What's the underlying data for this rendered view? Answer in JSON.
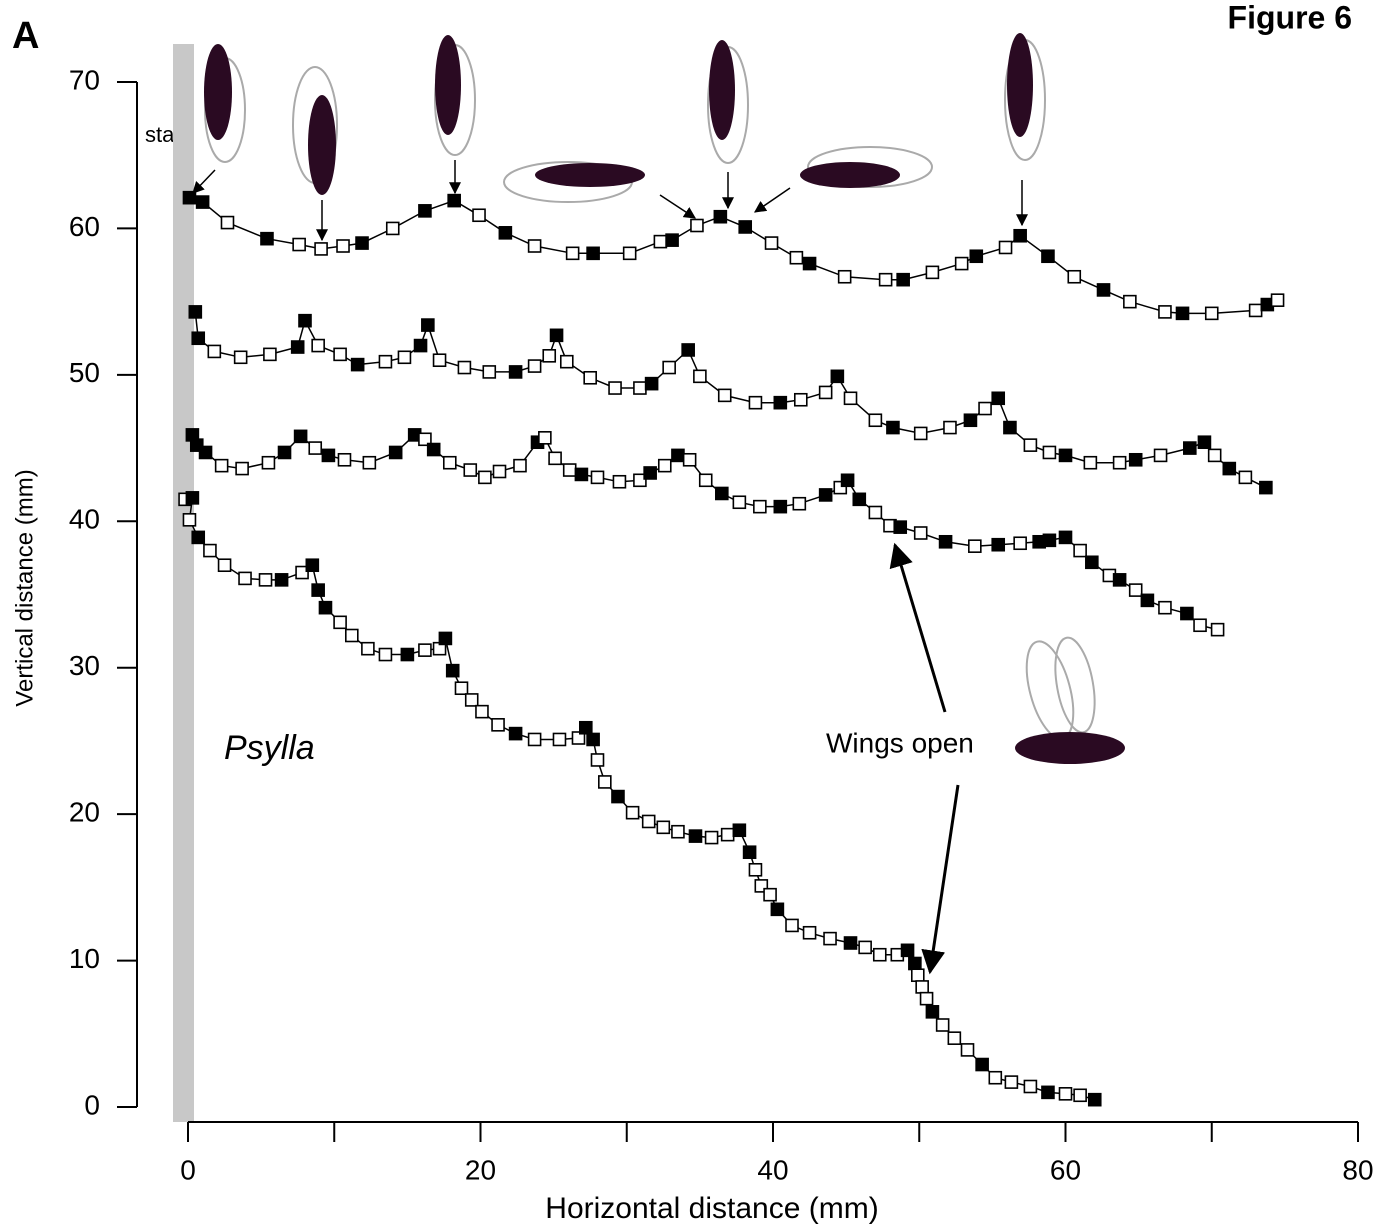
{
  "chart_data": {
    "type": "line",
    "panel_label": "A",
    "figure_label": "Figure 6",
    "xlabel": "Horizontal distance (mm)",
    "ylabel": "Vertical distance (mm)",
    "start_label": "start",
    "species_label": "Psylla",
    "annotation": "Wings open",
    "xlim": [
      0,
      80
    ],
    "ylim": [
      0,
      70
    ],
    "xticks": [
      0,
      20,
      40,
      60,
      80
    ],
    "xminor_ticks": [
      10,
      30,
      50,
      70
    ],
    "yticks": [
      0,
      10,
      20,
      30,
      40,
      50,
      60,
      70
    ],
    "line_color": "#000000",
    "marker_fill": "#ffffff",
    "filled_color": "#000000",
    "start_bar_color": "#c8c8c8",
    "series": [
      {
        "x": [
          0.1,
          1.0,
          2.7,
          5.4,
          7.6,
          9.1,
          10.6,
          11.9,
          14.0,
          16.2,
          18.2,
          19.9,
          21.7,
          23.7,
          26.3,
          27.7,
          30.2,
          32.3,
          33.1,
          34.8,
          36.4,
          38.1,
          39.9,
          41.6,
          42.5,
          44.9,
          47.7,
          48.9,
          50.9,
          52.9,
          53.9,
          55.9,
          56.9,
          58.8,
          60.6,
          62.6,
          64.4,
          66.8,
          68.0,
          70.0,
          73.0,
          73.8,
          74.5
        ],
        "values": [
          62.1,
          61.8,
          60.4,
          59.3,
          58.9,
          58.6,
          58.8,
          59.0,
          60.0,
          61.2,
          61.9,
          60.9,
          59.7,
          58.8,
          58.3,
          58.3,
          58.3,
          59.1,
          59.2,
          60.2,
          60.8,
          60.1,
          59.0,
          58.0,
          57.6,
          56.7,
          56.5,
          56.5,
          57.0,
          57.6,
          58.1,
          58.7,
          59.5,
          58.1,
          56.7,
          55.8,
          55.0,
          54.3,
          54.2,
          54.2,
          54.4,
          54.8,
          55.1
        ],
        "filled": [
          true,
          true,
          false,
          true,
          false,
          false,
          false,
          true,
          false,
          true,
          true,
          false,
          true,
          false,
          false,
          true,
          false,
          false,
          true,
          false,
          true,
          true,
          false,
          false,
          true,
          false,
          false,
          true,
          false,
          false,
          true,
          false,
          true,
          true,
          false,
          true,
          false,
          false,
          true,
          false,
          false,
          true,
          false
        ]
      },
      {
        "x": [
          0.5,
          0.7,
          1.8,
          3.6,
          5.6,
          7.5,
          8.0,
          8.9,
          10.4,
          11.6,
          13.5,
          14.8,
          15.9,
          16.4,
          17.2,
          18.9,
          20.6,
          22.4,
          23.7,
          24.7,
          25.2,
          25.9,
          27.5,
          29.2,
          30.9,
          31.7,
          32.9,
          34.2,
          35.0,
          36.7,
          38.8,
          40.5,
          41.9,
          43.6,
          44.4,
          45.3,
          47.0,
          48.2,
          50.1,
          52.1,
          53.5,
          54.5,
          55.4,
          56.2,
          57.6,
          58.9,
          60.0,
          61.7,
          63.7,
          64.8,
          66.5,
          68.5,
          69.5,
          70.2,
          71.2,
          72.3,
          73.7
        ],
        "values": [
          54.3,
          52.5,
          51.6,
          51.2,
          51.4,
          51.9,
          53.7,
          52.0,
          51.4,
          50.7,
          50.9,
          51.2,
          52.0,
          53.4,
          51.0,
          50.5,
          50.2,
          50.2,
          50.6,
          51.3,
          52.7,
          50.9,
          49.8,
          49.1,
          49.1,
          49.4,
          50.5,
          51.7,
          49.9,
          48.6,
          48.1,
          48.1,
          48.3,
          48.8,
          49.9,
          48.4,
          46.9,
          46.4,
          46.0,
          46.4,
          46.9,
          47.7,
          48.4,
          46.4,
          45.2,
          44.7,
          44.5,
          44.0,
          44.0,
          44.2,
          44.5,
          45.0,
          45.4,
          44.5,
          43.6,
          43.0,
          42.3
        ],
        "filled": [
          true,
          true,
          false,
          false,
          false,
          true,
          true,
          false,
          false,
          true,
          false,
          false,
          true,
          true,
          false,
          false,
          false,
          true,
          false,
          false,
          true,
          false,
          false,
          false,
          false,
          true,
          false,
          true,
          false,
          false,
          false,
          true,
          false,
          false,
          true,
          false,
          false,
          true,
          false,
          false,
          true,
          false,
          true,
          true,
          false,
          false,
          true,
          false,
          false,
          true,
          false,
          true,
          true,
          false,
          true,
          false,
          true
        ]
      },
      {
        "x": [
          0.3,
          0.6,
          1.2,
          2.3,
          3.7,
          5.5,
          6.6,
          7.7,
          8.7,
          9.6,
          10.7,
          12.4,
          14.2,
          15.5,
          16.2,
          16.8,
          17.9,
          19.3,
          20.3,
          21.3,
          22.7,
          23.9,
          24.4,
          25.1,
          26.1,
          26.9,
          28.0,
          29.5,
          30.9,
          31.6,
          32.6,
          33.5,
          34.3,
          35.4,
          36.5,
          37.7,
          39.1,
          40.5,
          41.8,
          43.6,
          44.6,
          45.1,
          45.9,
          47.0,
          48.0,
          48.7,
          50.1,
          51.8,
          53.8,
          55.4,
          56.9,
          58.2,
          58.9,
          60.0,
          61.0,
          61.8,
          63.0,
          63.7,
          64.8,
          65.6,
          66.8,
          68.3,
          69.2,
          70.4
        ],
        "values": [
          45.9,
          45.2,
          44.7,
          43.8,
          43.6,
          44.0,
          44.7,
          45.8,
          45.0,
          44.5,
          44.2,
          44.0,
          44.7,
          45.9,
          45.6,
          44.9,
          44.0,
          43.5,
          43.0,
          43.4,
          43.8,
          45.4,
          45.7,
          44.3,
          43.5,
          43.2,
          43.0,
          42.7,
          42.8,
          43.3,
          43.8,
          44.5,
          44.2,
          42.8,
          41.9,
          41.3,
          41.0,
          41.0,
          41.2,
          41.8,
          42.3,
          42.8,
          41.5,
          40.6,
          39.7,
          39.6,
          39.2,
          38.6,
          38.3,
          38.4,
          38.5,
          38.6,
          38.7,
          38.9,
          38.0,
          37.2,
          36.3,
          36.0,
          35.3,
          34.6,
          34.1,
          33.7,
          32.9,
          32.6
        ],
        "filled": [
          true,
          true,
          true,
          false,
          false,
          false,
          true,
          true,
          false,
          true,
          false,
          false,
          true,
          true,
          false,
          true,
          false,
          false,
          false,
          false,
          false,
          true,
          false,
          false,
          false,
          true,
          false,
          false,
          false,
          true,
          false,
          true,
          false,
          false,
          true,
          false,
          false,
          true,
          false,
          true,
          false,
          true,
          true,
          false,
          false,
          true,
          false,
          true,
          false,
          true,
          false,
          true,
          true,
          true,
          false,
          true,
          false,
          true,
          false,
          true,
          false,
          true,
          false,
          false
        ]
      },
      {
        "x": [
          -0.2,
          0.3,
          0.1,
          0.7,
          1.5,
          2.5,
          3.9,
          5.3,
          6.4,
          7.8,
          8.5,
          8.9,
          9.4,
          10.4,
          11.2,
          12.3,
          13.5,
          15.0,
          16.2,
          17.2,
          17.6,
          18.1,
          18.7,
          19.4,
          20.1,
          21.2,
          22.4,
          23.7,
          25.4,
          26.7,
          27.2,
          27.7,
          28.0,
          28.5,
          29.4,
          30.4,
          31.5,
          32.5,
          33.5,
          34.7,
          35.8,
          36.9,
          37.7,
          38.4,
          38.8,
          39.2,
          39.8,
          40.3,
          41.3,
          42.5,
          43.9,
          45.3,
          46.3,
          47.3,
          48.5,
          49.2,
          49.7,
          49.9,
          50.2,
          50.5,
          50.9,
          51.6,
          52.4,
          53.3,
          54.3,
          55.2,
          56.3,
          57.6,
          58.8,
          60.0,
          61.0,
          62.0
        ],
        "values": [
          41.5,
          41.6,
          40.1,
          38.9,
          38.0,
          37.0,
          36.1,
          36.0,
          36.0,
          36.5,
          37.0,
          35.3,
          34.1,
          33.1,
          32.2,
          31.3,
          30.9,
          30.9,
          31.2,
          31.3,
          32.0,
          29.8,
          28.6,
          27.8,
          27.0,
          26.1,
          25.5,
          25.1,
          25.1,
          25.2,
          25.9,
          25.1,
          23.7,
          22.2,
          21.2,
          20.1,
          19.5,
          19.1,
          18.8,
          18.5,
          18.4,
          18.6,
          18.9,
          17.4,
          16.2,
          15.1,
          14.5,
          13.5,
          12.4,
          11.9,
          11.5,
          11.2,
          10.9,
          10.4,
          10.4,
          10.7,
          9.8,
          9.0,
          8.2,
          7.4,
          6.5,
          5.6,
          4.7,
          3.9,
          2.9,
          2.0,
          1.7,
          1.4,
          1.0,
          0.9,
          0.8,
          0.5
        ],
        "filled": [
          false,
          true,
          false,
          true,
          false,
          false,
          false,
          false,
          true,
          false,
          true,
          true,
          true,
          false,
          false,
          false,
          false,
          true,
          false,
          false,
          true,
          true,
          false,
          false,
          false,
          false,
          true,
          false,
          false,
          false,
          true,
          true,
          false,
          false,
          true,
          false,
          false,
          false,
          false,
          true,
          false,
          false,
          true,
          true,
          false,
          false,
          false,
          true,
          false,
          false,
          false,
          true,
          false,
          false,
          false,
          true,
          true,
          false,
          false,
          false,
          true,
          false,
          false,
          false,
          true,
          false,
          false,
          false,
          true,
          false,
          false,
          true
        ]
      }
    ]
  }
}
